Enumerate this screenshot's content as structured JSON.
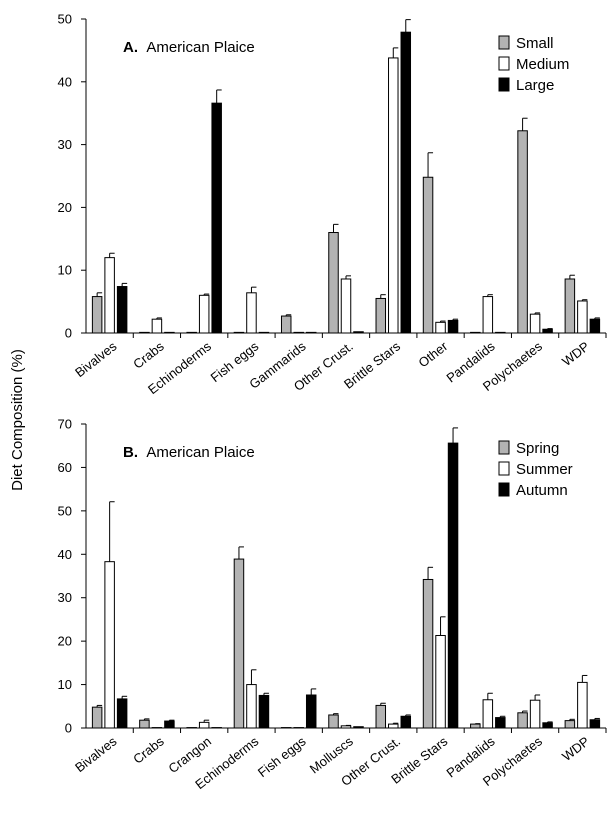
{
  "figure": {
    "shared_ylabel": "Diet Composition (%)"
  },
  "chart_data": [
    {
      "type": "bar",
      "panel_label": "A.",
      "title": "American Plaice",
      "ylim": [
        0,
        50
      ],
      "yticks": [
        0,
        10,
        20,
        30,
        40,
        50
      ],
      "grid": false,
      "legend_position": "top-right",
      "categories": [
        "Bivalves",
        "Crabs",
        "Echinoderms",
        "Fish eggs",
        "Gammarids",
        "Other Crust.",
        "Brittle Stars",
        "Other",
        "Pandalids",
        "Polychaetes",
        "WDP"
      ],
      "series": [
        {
          "name": "Small",
          "color": "#b3b3b3",
          "values": [
            5.8,
            0.1,
            0.1,
            0.1,
            2.7,
            16.0,
            5.5,
            24.8,
            0.1,
            32.2,
            8.6
          ],
          "errors": [
            0.6,
            0,
            0,
            0,
            0.2,
            1.3,
            0.6,
            3.9,
            0,
            2.0,
            0.6
          ]
        },
        {
          "name": "Medium",
          "color": "#ffffff",
          "values": [
            12.0,
            2.2,
            6.0,
            6.4,
            0.1,
            8.6,
            43.8,
            1.7,
            5.8,
            3.0,
            5.1
          ],
          "errors": [
            0.7,
            0.2,
            0.2,
            0.9,
            0,
            0.5,
            1.6,
            0.2,
            0.3,
            0.2,
            0.2
          ]
        },
        {
          "name": "Large",
          "color": "#000000",
          "values": [
            7.4,
            0.1,
            36.6,
            0.1,
            0.1,
            0.2,
            47.9,
            2.0,
            0.1,
            0.6,
            2.2
          ],
          "errors": [
            0.5,
            0,
            2.1,
            0,
            0,
            0,
            2.0,
            0.2,
            0,
            0.1,
            0.2
          ]
        }
      ]
    },
    {
      "type": "bar",
      "panel_label": "B.",
      "title": "American Plaice",
      "ylim": [
        0,
        70
      ],
      "yticks": [
        0,
        10,
        20,
        30,
        40,
        50,
        60,
        70
      ],
      "grid": false,
      "legend_position": "top-right",
      "categories": [
        "Bivalves",
        "Crabs",
        "Crangon",
        "Echinoderms",
        "Fish eggs",
        "Molluscs",
        "Other Crust.",
        "Brittle Stars",
        "Pandalids",
        "Polychaetes",
        "WDP"
      ],
      "series": [
        {
          "name": "Spring",
          "color": "#b3b3b3",
          "values": [
            4.8,
            1.8,
            0.1,
            38.9,
            0.1,
            3.0,
            5.2,
            34.2,
            0.9,
            3.5,
            1.7
          ],
          "errors": [
            0.4,
            0.3,
            0,
            2.8,
            0,
            0.3,
            0.5,
            2.8,
            0.1,
            0.4,
            0.3
          ]
        },
        {
          "name": "Summer",
          "color": "#ffffff",
          "values": [
            38.3,
            0.1,
            1.3,
            10.0,
            0.1,
            0.5,
            0.9,
            21.3,
            6.5,
            6.4,
            10.5
          ],
          "errors": [
            13.8,
            0,
            0.5,
            3.4,
            0,
            0.1,
            0.2,
            4.3,
            1.5,
            1.2,
            1.6
          ]
        },
        {
          "name": "Autumn",
          "color": "#000000",
          "values": [
            6.7,
            1.6,
            0.1,
            7.5,
            7.6,
            0.3,
            2.7,
            65.6,
            2.4,
            1.2,
            1.9
          ],
          "errors": [
            0.6,
            0.2,
            0,
            0.5,
            1.4,
            0,
            0.3,
            3.5,
            0.3,
            0.2,
            0.3
          ]
        }
      ]
    }
  ]
}
